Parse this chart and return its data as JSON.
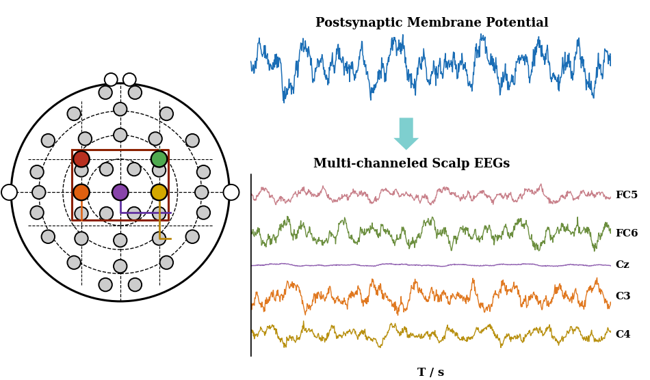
{
  "title_top": "Postsynaptic Membrane Potential",
  "title_mid": "Multi-channeled Scalp EEGs",
  "axis_label": "T / s",
  "channels": [
    "FC5",
    "FC6",
    "Cz",
    "C3",
    "C4"
  ],
  "channel_colors": [
    "#c8808a",
    "#6b8e3e",
    "#9060b0",
    "#e07820",
    "#b89010"
  ],
  "signal_color_top": "#1a6db5",
  "background_color": "#ffffff",
  "n_samples": 800,
  "electrode_colors": {
    "FC5": "#b83020",
    "FC6": "#50aa50",
    "Cz": "#8844aa",
    "C3": "#e06010",
    "C4": "#d4a800"
  },
  "red_box_color": "#8B2000",
  "purple_line_color": "#6030a0",
  "gold_line_color": "#b8860b"
}
